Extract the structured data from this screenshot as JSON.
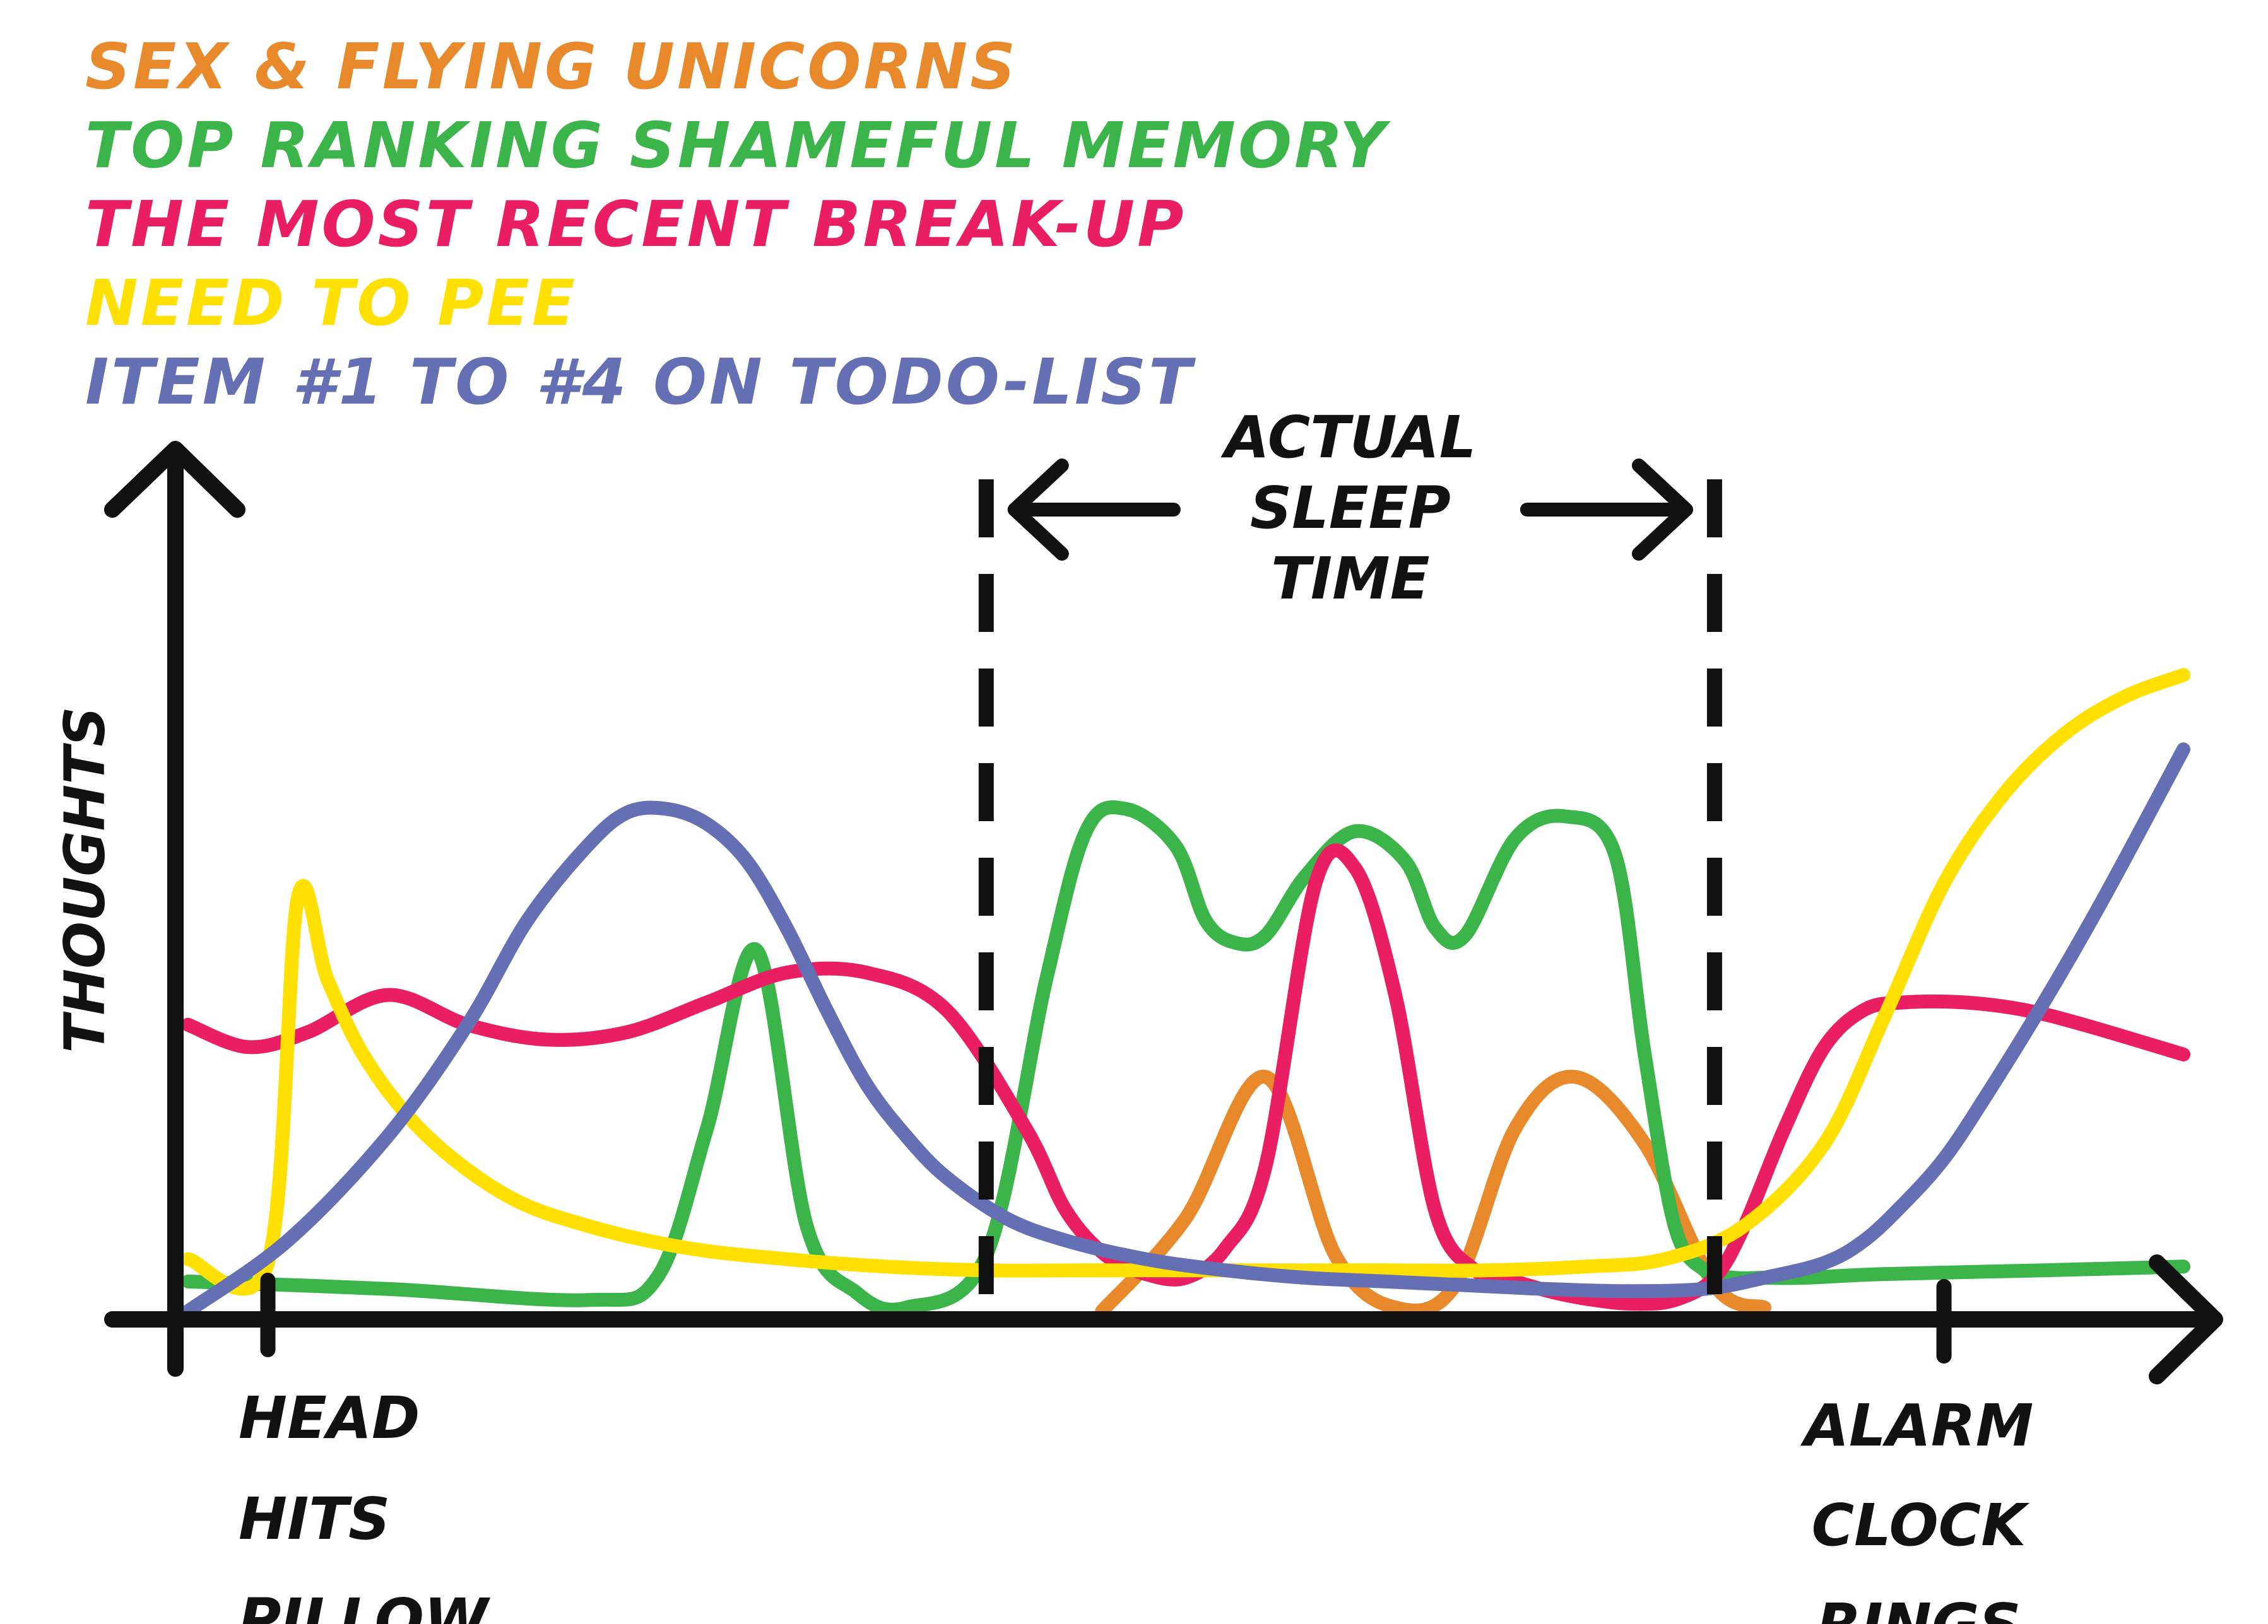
{
  "chart_data": {
    "type": "line",
    "ylabel": "THOUGHTS",
    "xlabel": "",
    "ylim": [
      0,
      10
    ],
    "xlim": [
      0,
      100
    ],
    "grid": false,
    "legend_position": "top-left",
    "series": [
      {
        "name": "SEX & FLYING UNICORNS",
        "color": "#E8892B",
        "x": [
          45.8,
          50,
          54,
          57.5,
          60.5,
          63.5,
          66.5,
          69.5,
          73,
          76.5,
          79
        ],
        "y": [
          0.05,
          1.3,
          3.2,
          0.8,
          0.1,
          0.4,
          2.5,
          3.2,
          2.3,
          0.4,
          0.1
        ]
      },
      {
        "name": "TOP RANKING SHAMEFUL MEMORY",
        "color": "#3BB54A",
        "x": [
          0,
          10,
          20,
          23.5,
          26,
          28.5,
          31,
          33.5,
          36,
          40,
          43,
          45,
          47,
          49.5,
          51,
          52.5,
          54,
          56,
          58.5,
          61,
          62.5,
          64,
          66.5,
          69,
          71.5,
          73,
          74.5,
          76,
          77.5,
          79,
          81,
          85,
          93,
          100
        ],
        "y": [
          0.45,
          0.35,
          0.2,
          0.5,
          2.5,
          4.9,
          1.2,
          0.3,
          0.1,
          0.8,
          4.5,
          6.5,
          6.8,
          6.3,
          5.3,
          5.0,
          5.1,
          5.9,
          6.5,
          6.1,
          5.2,
          5.1,
          6.4,
          6.7,
          6.2,
          3.5,
          1.2,
          0.6,
          0.5,
          0.5,
          0.5,
          0.55,
          0.6,
          0.65
        ]
      },
      {
        "name": "THE MOST RECENT BREAK-UP",
        "color": "#E91E63",
        "x": [
          0,
          3,
          6,
          10,
          14,
          18,
          22,
          26,
          30,
          34,
          38,
          42,
          44,
          46,
          48,
          50,
          52,
          54,
          56.5,
          58.5,
          60.5,
          62.5,
          64.5,
          66.5,
          68.5,
          70.5,
          72.5,
          74.5,
          76.5,
          78,
          80,
          82,
          84,
          86,
          89,
          92,
          95,
          100
        ],
        "y": [
          3.9,
          3.6,
          3.8,
          4.3,
          3.9,
          3.7,
          3.8,
          4.2,
          4.6,
          4.6,
          4.1,
          2.5,
          1.4,
          0.8,
          0.55,
          0.5,
          0.9,
          2.0,
          5.8,
          6.0,
          4.3,
          1.4,
          0.6,
          0.45,
          0.3,
          0.2,
          0.15,
          0.2,
          0.5,
          1.2,
          2.5,
          3.6,
          4.1,
          4.2,
          4.2,
          4.1,
          3.9,
          3.5
        ]
      },
      {
        "name": "NEED TO PEE",
        "color": "#FFE000",
        "x": [
          0,
          4,
          5.5,
          7,
          9,
          12,
          16,
          20,
          25,
          30,
          35,
          40,
          45,
          50,
          55,
          60,
          65,
          70,
          74,
          78,
          82,
          85,
          88,
          91,
          94,
          97,
          100
        ],
        "y": [
          0.75,
          0.7,
          5.6,
          4.5,
          3.4,
          2.4,
          1.6,
          1.2,
          0.9,
          0.75,
          0.65,
          0.6,
          0.6,
          0.6,
          0.6,
          0.6,
          0.6,
          0.65,
          0.75,
          1.2,
          2.3,
          4.0,
          5.8,
          7.0,
          7.8,
          8.3,
          8.6
        ]
      },
      {
        "name": "ITEM #1 TO #4 ON TODO-LIST",
        "color": "#6470B3",
        "x": [
          0,
          5,
          10,
          14,
          17,
          20,
          22,
          24,
          26,
          28,
          30,
          32,
          34,
          36,
          38,
          41,
          44,
          48,
          52,
          56,
          60,
          64,
          68,
          72,
          76,
          79,
          82,
          84,
          86,
          88,
          90,
          93,
          96,
          100
        ],
        "y": [
          0.05,
          1.0,
          2.4,
          3.9,
          5.3,
          6.3,
          6.75,
          6.8,
          6.6,
          6.1,
          5.2,
          4.1,
          3.1,
          2.4,
          1.85,
          1.3,
          1.0,
          0.75,
          0.6,
          0.5,
          0.45,
          0.4,
          0.35,
          0.32,
          0.35,
          0.5,
          0.7,
          1.0,
          1.5,
          2.1,
          2.9,
          4.2,
          5.6,
          7.6
        ]
      }
    ],
    "annotations": {
      "sleep_label": [
        "ACTUAL",
        "SLEEP",
        "TIME"
      ],
      "head_label": [
        "HEAD",
        "HITS",
        "PILLOW"
      ],
      "alarm_label": [
        "ALARM",
        "CLOCK",
        "RINGS"
      ],
      "sleep_start_x": 40,
      "sleep_end_x": 76.5,
      "head_tick_x": 4,
      "alarm_tick_x": 88
    }
  }
}
